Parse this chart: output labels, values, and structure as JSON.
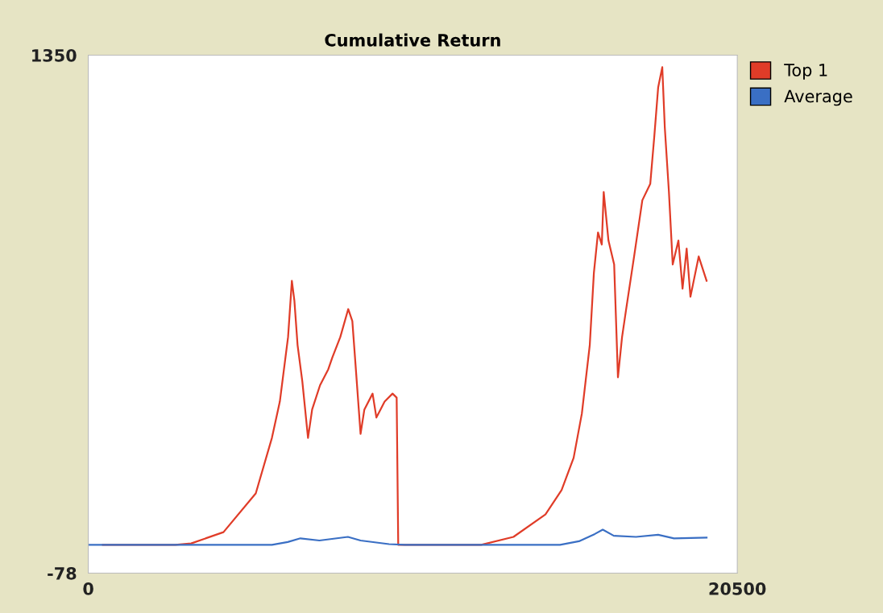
{
  "chart_data": {
    "type": "line",
    "title": "Cumulative Return",
    "xlim": [
      0,
      20500
    ],
    "ylim": [
      -78,
      1350
    ],
    "xticks": [
      0,
      20500
    ],
    "yticks": [
      -78,
      1350
    ],
    "grid": false,
    "legend": "top right",
    "series": [
      {
        "name": "Top 1",
        "color": "#e03c28",
        "x": [
          460,
          2750,
          3250,
          4270,
          5290,
          5800,
          6050,
          6310,
          6430,
          6510,
          6610,
          6760,
          6940,
          7070,
          7320,
          7580,
          7710,
          7960,
          8210,
          8340,
          8470,
          8600,
          8720,
          8980,
          9100,
          9360,
          9610,
          9740,
          9790,
          12410,
          13430,
          14440,
          14950,
          15330,
          15590,
          15840,
          15970,
          16100,
          16220,
          16280,
          16430,
          16610,
          16730,
          16860,
          16990,
          17240,
          17500,
          17750,
          17880,
          18000,
          18130,
          18210,
          18340,
          18460,
          18640,
          18770,
          18900,
          19020,
          19280,
          19530
        ],
        "values": [
          0,
          0,
          4,
          35,
          142,
          295,
          395,
          573,
          728,
          673,
          551,
          451,
          295,
          373,
          440,
          484,
          517,
          573,
          650,
          617,
          462,
          306,
          373,
          417,
          351,
          395,
          417,
          406,
          0,
          0,
          22,
          84,
          151,
          240,
          362,
          551,
          750,
          861,
          828,
          973,
          839,
          773,
          462,
          573,
          650,
          795,
          950,
          995,
          1128,
          1261,
          1317,
          1150,
          973,
          773,
          839,
          706,
          817,
          684,
          795,
          728
        ]
      },
      {
        "name": "Average",
        "color": "#3a6fc4",
        "x": [
          0,
          5800,
          6300,
          6700,
          7300,
          8200,
          8600,
          9500,
          10000,
          14900,
          15500,
          16000,
          16250,
          16600,
          17300,
          18000,
          18500,
          19530
        ],
        "values": [
          0,
          0,
          8,
          18,
          12,
          22,
          12,
          2,
          0,
          0,
          10,
          30,
          42,
          25,
          22,
          28,
          18,
          20
        ]
      }
    ]
  }
}
